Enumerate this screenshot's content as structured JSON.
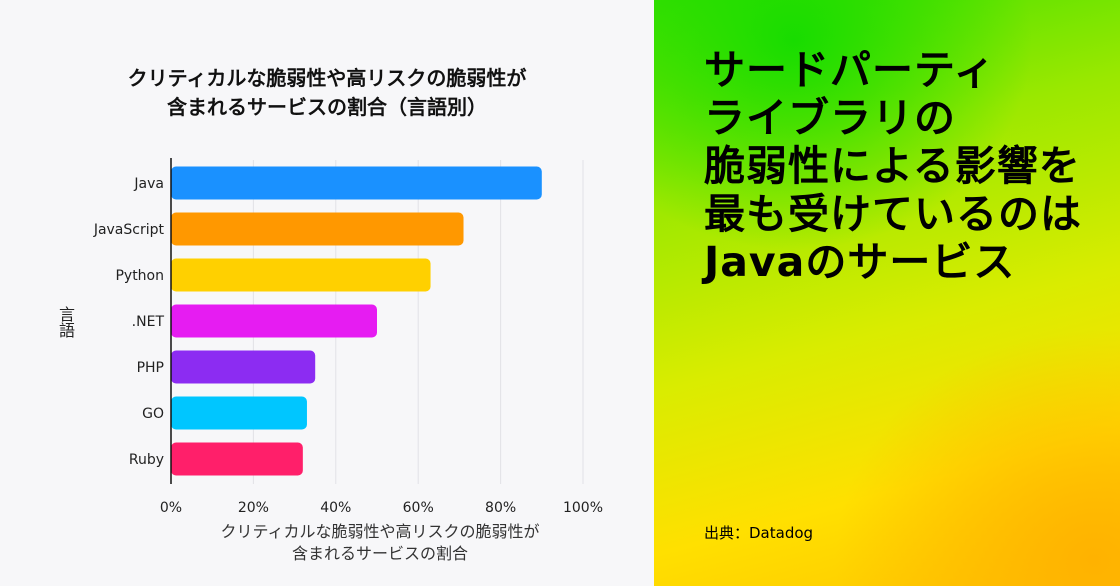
{
  "chart_data": {
    "type": "bar",
    "orientation": "horizontal",
    "title_lines": [
      "クリティカルな脆弱性や高リスクの脆弱性が",
      "含まれるサービスの割合（言語別）"
    ],
    "xlabel_lines": [
      "クリティカルな脆弱性や高リスクの脆弱性が",
      "含まれるサービスの割合"
    ],
    "ylabel": "言語",
    "categories": [
      "Java",
      "JavaScript",
      "Python",
      ".NET",
      "PHP",
      "GO",
      "Ruby"
    ],
    "values": [
      90,
      71,
      63,
      50,
      35,
      33,
      32
    ],
    "colors": [
      "#1a91ff",
      "#ff9800",
      "#ffd000",
      "#e61cf2",
      "#8c2cf2",
      "#00c6ff",
      "#ff1f6a"
    ],
    "xlim": [
      0,
      100
    ],
    "x_ticks": [
      "0%",
      "20%",
      "40%",
      "60%",
      "80%",
      "100%"
    ],
    "x_tick_values": [
      0,
      20,
      40,
      60,
      80,
      100
    ],
    "grid": true,
    "legend": "none"
  },
  "headline": {
    "lines": [
      "サードパーティ",
      "ライブラリの",
      "脆弱性による影響を",
      "最も受けているのは",
      "Javaのサービス"
    ]
  },
  "source": "出典：Datadog",
  "colors": {
    "background_left": "#f7f7f9",
    "gradient_green": "#3de000",
    "gradient_yellow": "#ffe000",
    "gradient_orange": "#ffb200"
  }
}
